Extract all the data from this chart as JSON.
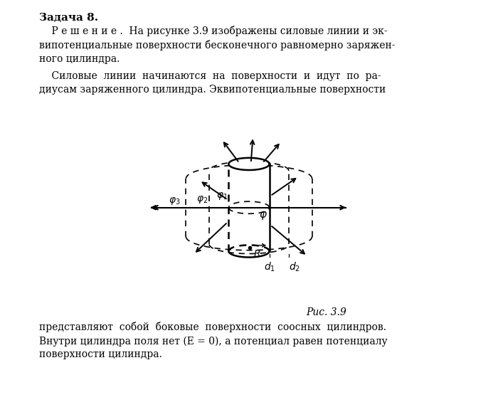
{
  "title": "Рис. 3.9",
  "header_title": "Задача 8.",
  "header_text1": "    Р е ш е н и е .  На рисунке 3.9 изображены силовые линии и эк-\nвипотенциальные поверхности бесконечного равномерно заряжен-\nного цилиндра.",
  "header_text2": "    Силовые  линии  начинаются  на  поверхности  и  идут  по  ра-\nдиусам заряженного цилиндра. Эквипотенциальные поверхности",
  "footer_text": "представляют  собой  боковые  поверхности  соосных  цилиндров.\nВнутри цилиндра поля нет (E = 0), а потенциал равен потенциалу\nповерхности цилиндра.",
  "fig_caption": "Рис. 3.9",
  "bg_color": "#ffffff"
}
